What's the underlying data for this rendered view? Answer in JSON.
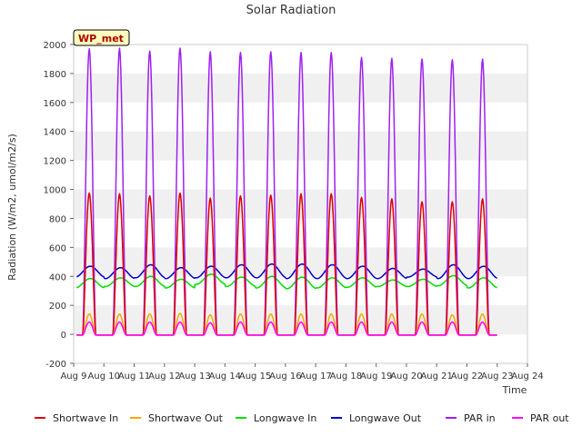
{
  "chart_data": {
    "type": "line",
    "title": "Solar Radiation",
    "xlabel": "Time",
    "ylabel": "Radiation (W/m2, umol/m2/s)",
    "ylim": [
      -200,
      2000
    ],
    "xlim": [
      0,
      15
    ],
    "yticks": [
      -200,
      0,
      200,
      400,
      600,
      800,
      1000,
      1200,
      1400,
      1600,
      1800,
      2000
    ],
    "xtick_labels": [
      "Aug 9",
      "Aug 10",
      "Aug 11",
      "Aug 12",
      "Aug 13",
      "Aug 14",
      "Aug 15",
      "Aug 16",
      "Aug 17",
      "Aug 18",
      "Aug 19",
      "Aug 20",
      "Aug 21",
      "Aug 22",
      "Aug 23",
      "Aug 24"
    ],
    "grid": "horizontal bands",
    "legend_position": "bottom",
    "annotation": "WP_met",
    "days": [
      "Aug 9",
      "Aug 10",
      "Aug 11",
      "Aug 12",
      "Aug 13",
      "Aug 14",
      "Aug 15",
      "Aug 16",
      "Aug 17",
      "Aug 18",
      "Aug 19",
      "Aug 20",
      "Aug 21",
      "Aug 22"
    ],
    "series": [
      {
        "name": "Shortwave In",
        "color": "#dd0000",
        "kind": "diurnal",
        "night": -5,
        "daily_peak": [
          975,
          970,
          955,
          975,
          940,
          955,
          960,
          970,
          970,
          945,
          935,
          915,
          915,
          935
        ]
      },
      {
        "name": "Shortwave Out",
        "color": "#ffa500",
        "kind": "diurnal",
        "night": -5,
        "daily_peak": [
          140,
          140,
          140,
          145,
          135,
          140,
          140,
          140,
          140,
          140,
          140,
          140,
          135,
          140
        ]
      },
      {
        "name": "Longwave In",
        "color": "#00dd00",
        "kind": "continuous",
        "daily_min": [
          320,
          330,
          330,
          320,
          345,
          330,
          320,
          315,
          320,
          325,
          330,
          330,
          335,
          320
        ],
        "daily_max": [
          385,
          390,
          400,
          380,
          415,
          395,
          400,
          395,
          390,
          390,
          375,
          380,
          405,
          390
        ]
      },
      {
        "name": "Longwave Out",
        "color": "#0000cc",
        "kind": "continuous",
        "daily_min": [
          395,
          385,
          390,
          385,
          390,
          390,
          390,
          385,
          385,
          385,
          385,
          395,
          385,
          385
        ],
        "daily_max": [
          470,
          460,
          480,
          460,
          470,
          480,
          485,
          485,
          480,
          470,
          455,
          450,
          480,
          470
        ]
      },
      {
        "name": "PAR in",
        "color": "#a020f0",
        "kind": "diurnal",
        "night": -5,
        "daily_peak": [
          1970,
          1975,
          1955,
          1975,
          1950,
          1945,
          1950,
          1945,
          1945,
          1910,
          1905,
          1900,
          1895,
          1900
        ]
      },
      {
        "name": "PAR out",
        "color": "#ff00ff",
        "kind": "diurnal",
        "night": -5,
        "daily_peak": [
          85,
          85,
          85,
          85,
          80,
          85,
          85,
          85,
          85,
          85,
          85,
          85,
          85,
          85
        ]
      }
    ]
  }
}
